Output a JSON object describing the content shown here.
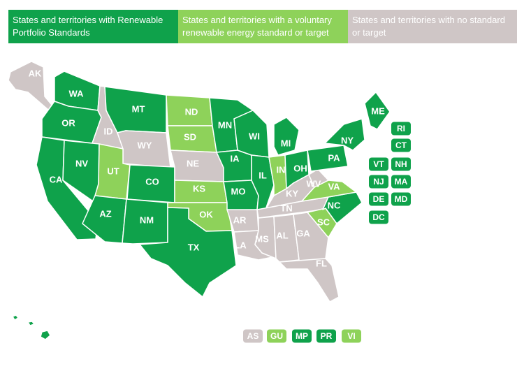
{
  "colors": {
    "rps": "#0fa24b",
    "voluntary": "#8ed25a",
    "none": "#cfc6c6",
    "border": "#ffffff"
  },
  "legend": [
    {
      "key": "rps",
      "label": "States and territories with Renewable Portfolio Standards"
    },
    {
      "key": "voluntary",
      "label": "States and territories with a voluntary renewable energy standard or target"
    },
    {
      "key": "none",
      "label": "States and territories with no standard or target"
    }
  ],
  "states": [
    {
      "code": "AK",
      "category": "none"
    },
    {
      "code": "WA",
      "category": "rps"
    },
    {
      "code": "OR",
      "category": "rps"
    },
    {
      "code": "CA",
      "category": "rps"
    },
    {
      "code": "ID",
      "category": "none"
    },
    {
      "code": "NV",
      "category": "rps"
    },
    {
      "code": "MT",
      "category": "rps"
    },
    {
      "code": "WY",
      "category": "none"
    },
    {
      "code": "UT",
      "category": "voluntary"
    },
    {
      "code": "AZ",
      "category": "rps"
    },
    {
      "code": "CO",
      "category": "rps"
    },
    {
      "code": "NM",
      "category": "rps"
    },
    {
      "code": "ND",
      "category": "voluntary"
    },
    {
      "code": "SD",
      "category": "voluntary"
    },
    {
      "code": "NE",
      "category": "none"
    },
    {
      "code": "KS",
      "category": "voluntary"
    },
    {
      "code": "OK",
      "category": "voluntary"
    },
    {
      "code": "TX",
      "category": "rps"
    },
    {
      "code": "MN",
      "category": "rps"
    },
    {
      "code": "IA",
      "category": "rps"
    },
    {
      "code": "MO",
      "category": "rps"
    },
    {
      "code": "AR",
      "category": "none"
    },
    {
      "code": "LA",
      "category": "none"
    },
    {
      "code": "WI",
      "category": "rps"
    },
    {
      "code": "IL",
      "category": "rps"
    },
    {
      "code": "MI",
      "category": "rps"
    },
    {
      "code": "IN",
      "category": "voluntary"
    },
    {
      "code": "OH",
      "category": "rps"
    },
    {
      "code": "KY",
      "category": "none"
    },
    {
      "code": "TN",
      "category": "none"
    },
    {
      "code": "MS",
      "category": "none"
    },
    {
      "code": "AL",
      "category": "none"
    },
    {
      "code": "GA",
      "category": "none"
    },
    {
      "code": "FL",
      "category": "none"
    },
    {
      "code": "SC",
      "category": "voluntary"
    },
    {
      "code": "NC",
      "category": "rps"
    },
    {
      "code": "VA",
      "category": "voluntary"
    },
    {
      "code": "WV",
      "category": "none"
    },
    {
      "code": "PA",
      "category": "rps"
    },
    {
      "code": "NY",
      "category": "rps"
    },
    {
      "code": "ME",
      "category": "rps"
    },
    {
      "code": "HI",
      "category": "rps"
    }
  ],
  "small_states": [
    {
      "code": "RI",
      "category": "rps"
    },
    {
      "code": "CT",
      "category": "rps"
    },
    {
      "code": "VT",
      "category": "rps"
    },
    {
      "code": "NH",
      "category": "rps"
    },
    {
      "code": "NJ",
      "category": "rps"
    },
    {
      "code": "MA",
      "category": "rps"
    },
    {
      "code": "DE",
      "category": "rps"
    },
    {
      "code": "MD",
      "category": "rps"
    },
    {
      "code": "DC",
      "category": "rps"
    }
  ],
  "territories": [
    {
      "code": "AS",
      "category": "none"
    },
    {
      "code": "GU",
      "category": "voluntary"
    },
    {
      "code": "MP",
      "category": "rps"
    },
    {
      "code": "PR",
      "category": "rps"
    },
    {
      "code": "VI",
      "category": "voluntary"
    }
  ]
}
